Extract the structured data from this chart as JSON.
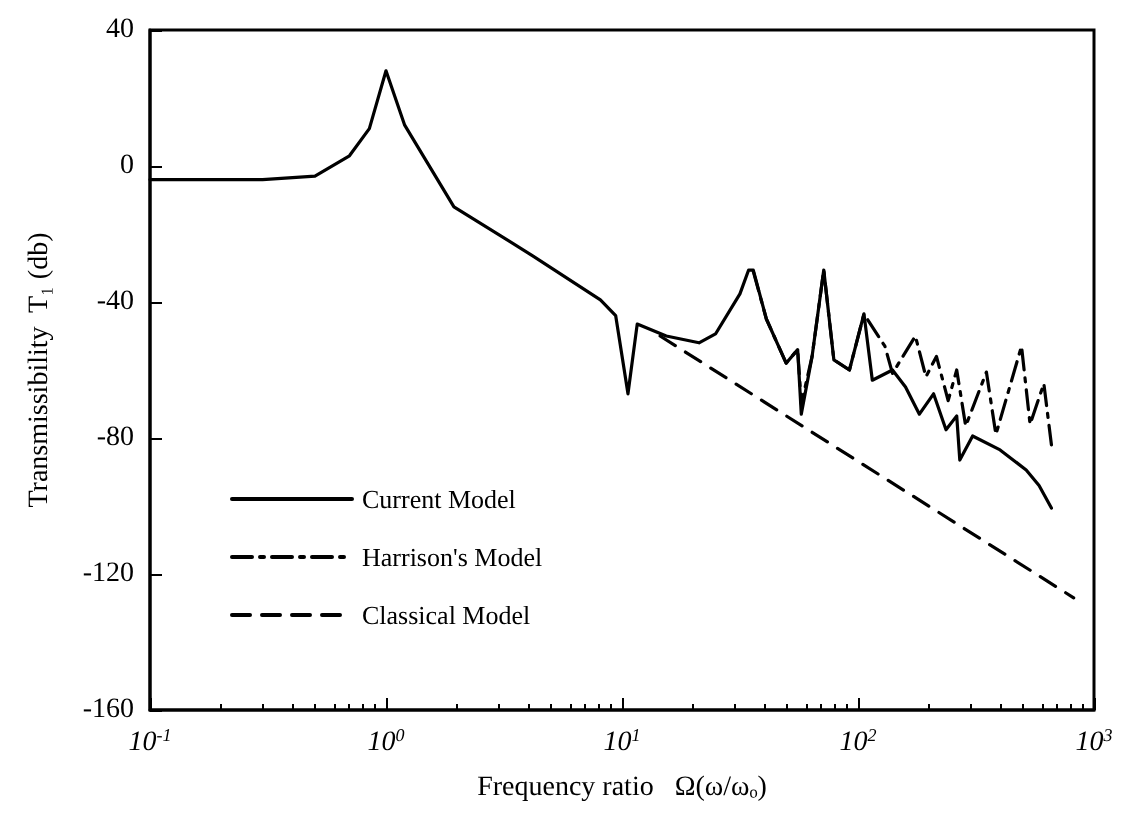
{
  "chart_data": {
    "type": "line",
    "xlabel": "Frequency ratio   Ω(ω/ωₒ)",
    "ylabel": "Transmissibility  T₁ (db)",
    "xlim": [
      0.1,
      1000
    ],
    "ylim": [
      -160,
      40
    ],
    "xticks": [
      {
        "value": 0.1,
        "label": "10$^{-1}$"
      },
      {
        "value": 1,
        "label": "10$^{0}$"
      },
      {
        "value": 10,
        "label": "10$^{1}$"
      },
      {
        "value": 100,
        "label": "10$^{2}$"
      },
      {
        "value": 1000,
        "label": "10$^{3}$"
      }
    ],
    "yticks": [
      -160,
      -120,
      -80,
      -40,
      0,
      40
    ],
    "log": "x",
    "grid": false,
    "legend": "left",
    "marker": "none",
    "series": [
      {
        "name": "Current Model",
        "color": "#000000",
        "line_style": "solid",
        "x": [
          0.1,
          0.3,
          0.5,
          0.7,
          0.85,
          1,
          1.2,
          1.94,
          4.2,
          8.1,
          9.4,
          10.6,
          11.6,
          15.4,
          21.2,
          24.9,
          31.6,
          34.4,
          36,
          40.9,
          49.6,
          55.5,
          57.5,
          63.9,
          71.6,
          79,
          92,
          106,
          115,
          140,
          159,
          182,
          209,
          236,
          262,
          270,
          306,
          400,
          516,
          585,
          660
        ],
        "values": [
          -4,
          -4,
          -3,
          3,
          11,
          28,
          12,
          -12,
          -26.5,
          -39.4,
          -44,
          -67,
          -46.5,
          -50,
          -52,
          -49.4,
          -37.6,
          -30.6,
          -30.6,
          -45,
          -58,
          -54,
          -73,
          -56,
          -30.6,
          -57,
          -60,
          -43.5,
          -63,
          -60,
          -65,
          -73,
          -67,
          -77.6,
          -73.5,
          -86.5,
          -79.4,
          -83.5,
          -89.4,
          -94,
          -100.6
        ]
      },
      {
        "name": "Harrison's Model",
        "color": "#000000",
        "line_style": "dashdot",
        "x": [
          36,
          40.9,
          49.6,
          55.5,
          57.5,
          63.9,
          71.6,
          79,
          92,
          106,
          130,
          140,
          175,
          194,
          215,
          241,
          262,
          286,
          350,
          384,
          493,
          536,
          613,
          660
        ],
        "values": [
          -31,
          -45,
          -58,
          -54,
          -70,
          -56,
          -30.6,
          -57,
          -60,
          -43.5,
          -53,
          -61,
          -50,
          -62,
          -56,
          -69,
          -60,
          -76.5,
          -60.6,
          -79,
          -53,
          -76,
          -64,
          -82
        ]
      },
      {
        "name": "Classical Model",
        "color": "#000000",
        "line_style": "dashed",
        "x": [
          14.5,
          820
        ],
        "values": [
          -50,
          -127
        ]
      }
    ]
  }
}
